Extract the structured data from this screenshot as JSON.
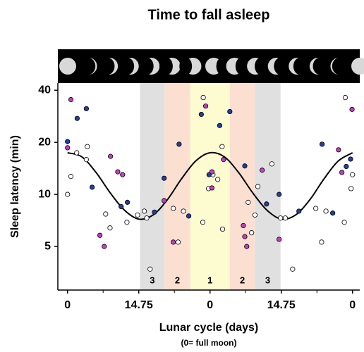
{
  "chart_data": {
    "type": "scatter",
    "title": "Time to fall asleep",
    "x_label": "Lunar cycle (days)",
    "x_sublabel": "(0= full moon)",
    "y_label": "Sleep latency (min)",
    "log_y": true,
    "xlim": [
      -2,
      60.5
    ],
    "ylim": [
      2.8,
      44
    ],
    "xticks": [
      0,
      {
        "value": 14.75,
        "label": "14.75"
      },
      {
        "value": 29.5,
        "label": "0"
      },
      {
        "value": 44.25,
        "label": "14.75"
      },
      {
        "value": 59,
        "label": "0"
      }
    ],
    "yticks": [
      5,
      10,
      20,
      40
    ],
    "bands": [
      {
        "from": 15.0,
        "to": 20.1,
        "label": "3",
        "color": "#e0e0e0"
      },
      {
        "from": 20.1,
        "to": 25.4,
        "label": "2",
        "color": "#fbe0d2"
      },
      {
        "from": 25.4,
        "to": 33.6,
        "label": "1",
        "color": "#fdfbd0"
      },
      {
        "from": 33.6,
        "to": 38.8,
        "label": "2",
        "color": "#fbe0d2"
      },
      {
        "from": 38.8,
        "to": 44.1,
        "label": "3",
        "color": "#e0e0e0"
      }
    ],
    "series": [
      {
        "color": "#ffffff",
        "x": [
          0,
          0.7,
          1.9,
          3.9,
          4.1,
          7.9,
          8.8,
          12.3,
          14.5,
          15.9,
          16.4,
          17.1,
          21.9,
          22.9,
          24.0,
          28.0,
          28.1,
          29.2,
          30.1,
          31.1,
          32.0,
          32.1,
          37.4,
          38.1,
          38.8,
          39.4,
          42.3,
          44.1,
          45.1,
          46.6,
          51.4,
          52.6,
          53.5,
          57.3,
          57.5,
          58.7,
          59.0
        ],
        "values": [
          10.0,
          12.7,
          17.4,
          15.9,
          18.9,
          7.7,
          6.4,
          6.9,
          7.6,
          8.0,
          7.3,
          3.7,
          8.3,
          5.3,
          8.0,
          6.9,
          36.3,
          10.8,
          13.0,
          12.2,
          18.9,
          6.3,
          9.0,
          6.0,
          7.6,
          11.1,
          15.0,
          7.3,
          7.3,
          3.7,
          8.3,
          5.3,
          8.0,
          6.9,
          36.3,
          10.8,
          13.0
        ]
      },
      {
        "color": "#2040a0",
        "x": [
          0,
          2.0,
          3.9,
          5.1,
          11.1,
          12.4,
          18.0,
          20.0,
          23.1,
          25.1,
          27.7,
          29.3,
          31.5,
          33.6,
          36.7,
          41.2,
          43.8,
          47.9,
          52.7,
          54.9,
          57.7,
          58.6
        ],
        "values": [
          20.2,
          27.5,
          31.3,
          11.0,
          8.5,
          9.0,
          7.9,
          12.4,
          19.5,
          7.5,
          29.0,
          13.0,
          25.0,
          30.1,
          14.6,
          8.8,
          10.0,
          8.0,
          19.5,
          7.8,
          14.5,
          16.0
        ]
      },
      {
        "color": "#c040c0",
        "x": [
          0,
          0.7,
          6.7,
          7.6,
          8.9,
          10.4,
          11.4,
          20.0,
          21.9,
          28.6,
          29.9,
          29.9,
          32.3,
          36.4,
          36.7,
          37.1,
          40.3,
          43.8,
          56.1,
          56.8,
          58.9
        ],
        "values": [
          18.6,
          35.3,
          5.8,
          5.0,
          16.6,
          13.5,
          13.0,
          9.2,
          5.3,
          32.4,
          13.5,
          10.9,
          15.9,
          6.6,
          5.7,
          5.0,
          13.8,
          5.5,
          18.1,
          13.4,
          31.0
        ]
      }
    ],
    "fit": {
      "color": "#000000",
      "x": [
        0,
        2.95,
        5.9,
        8.85,
        11.8,
        14.75,
        17.7,
        20.65,
        23.6,
        26.55,
        29.5,
        32.45,
        35.4,
        38.35,
        41.3,
        44.25,
        47.2,
        50.15,
        53.1,
        56.05,
        59
      ],
      "values": [
        17.4,
        16.5,
        13.4,
        10.2,
        8.1,
        7.2,
        7.6,
        9.3,
        12.3,
        15.6,
        17.4,
        16.5,
        13.4,
        10.2,
        8.1,
        7.2,
        7.6,
        9.3,
        12.3,
        15.6,
        17.4
      ]
    }
  }
}
